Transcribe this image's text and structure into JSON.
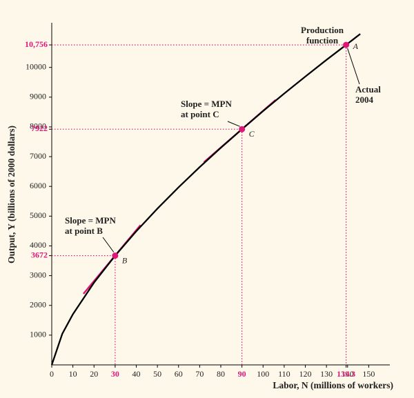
{
  "chart_data": {
    "type": "line",
    "x_label": "Labor, N (millions of workers)",
    "y_label": "Output, Y (billions of 2000 dollars)",
    "x": [
      0,
      5,
      10,
      20,
      30,
      40,
      50,
      60,
      70,
      80,
      90,
      100,
      110,
      120,
      130,
      139.3,
      146
    ],
    "series": [
      {
        "name": "Production function",
        "color": "#000000",
        "values": [
          0,
          1048,
          1703,
          2766,
          3672,
          4492,
          5252,
          5969,
          6648,
          7297,
          7922,
          8533,
          9121,
          9692,
          10252,
          10756,
          11125
        ]
      }
    ],
    "xlim": [
      0,
      160
    ],
    "ylim": [
      0,
      11500
    ],
    "xticks": [
      0,
      10,
      20,
      40,
      50,
      60,
      70,
      80,
      100,
      110,
      120,
      130,
      140,
      150
    ],
    "yticks": [
      1000,
      2000,
      3000,
      4000,
      5000,
      6000,
      7000,
      8000,
      9000,
      10000
    ],
    "highlight_color": "#e0157a",
    "points": [
      {
        "label": "B",
        "x": 30,
        "y": 3672
      },
      {
        "label": "C",
        "x": 90,
        "y": 7922
      },
      {
        "label": "A",
        "x": 139.3,
        "x_label": "139.3",
        "y": 10756,
        "y_label": "10,756"
      }
    ],
    "tangents": [
      {
        "x": [
          15,
          42
        ],
        "y": [
          2390,
          4700
        ]
      },
      {
        "x": [
          72,
          106
        ],
        "y": [
          6813,
          8908
        ]
      }
    ],
    "annotations": [
      {
        "lines": [
          "Production",
          "function"
        ]
      },
      {
        "lines": [
          "Actual",
          "2004"
        ]
      },
      {
        "lines": [
          "Slope = MPN",
          "at point C"
        ]
      },
      {
        "lines": [
          "Slope = MPN",
          "at point B"
        ]
      }
    ]
  }
}
